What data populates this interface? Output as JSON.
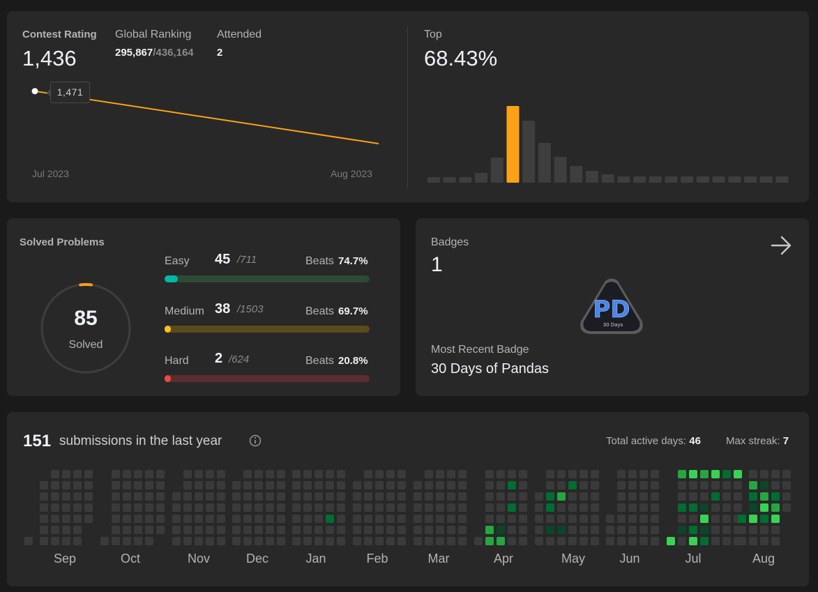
{
  "contest": {
    "rating_label": "Contest Rating",
    "rating": "1,436",
    "global_label": "Global Ranking",
    "global_rank": "295,867",
    "global_total": "/436,164",
    "attended_label": "Attended",
    "attended": "2",
    "tooltip_value": "1,471",
    "x_start": "Jul 2023",
    "x_end": "Aug 2023",
    "top_label": "Top",
    "top_value": "68.43%",
    "accent_color": "#ffa116"
  },
  "chart_data": {
    "type": "bar",
    "series": [
      {
        "values": [
          8,
          8,
          8,
          14,
          36,
          110,
          89,
          57,
          37,
          24,
          17,
          12,
          9,
          9,
          9,
          9,
          9,
          9,
          9,
          9,
          9,
          9,
          9
        ]
      }
    ],
    "highlight_index": 5,
    "colors": {
      "bar": "#3e3e3e",
      "highlight": "#ffa116"
    }
  },
  "rating_line": {
    "type": "line",
    "values": [
      1471,
      1436
    ]
  },
  "solved": {
    "title": "Solved Problems",
    "total": "85",
    "total_label": "Solved",
    "ring_progress": 0.04,
    "rows": [
      {
        "name": "Easy",
        "count": "45",
        "total": "/711",
        "beats_label": "Beats",
        "beats": "74.7%",
        "fraction": 0.063,
        "track": "#2c4a35",
        "fill": "#00b8a3"
      },
      {
        "name": "Medium",
        "count": "38",
        "total": "/1503",
        "beats_label": "Beats",
        "beats": "69.7%",
        "fraction": 0.025,
        "track": "#5a4a1e",
        "fill": "#ffc01e"
      },
      {
        "name": "Hard",
        "count": "2",
        "total": "/624",
        "beats_label": "Beats",
        "beats": "20.8%",
        "fraction": 0.003,
        "track": "#5a2e2e",
        "fill": "#ef4743"
      }
    ]
  },
  "badges": {
    "title": "Badges",
    "count": "1",
    "badge_letters": "PD",
    "badge_sub": "30 Days",
    "recent_label": "Most Recent Badge",
    "recent_name": "30 Days of Pandas",
    "arrow_icon": "arrow-right-icon"
  },
  "submissions": {
    "count": "151",
    "label": "submissions in the last year",
    "info_icon": "info-icon",
    "active_label": "Total active days:",
    "active_days": "46",
    "streak_label": "Max streak:",
    "max_streak": "7",
    "months": [
      "Sep",
      "Oct",
      "Nov",
      "Dec",
      "Jan",
      "Feb",
      "Mar",
      "Apr",
      "May",
      "Jun",
      "Jul",
      "Aug"
    ],
    "colors": {
      "empty": "#3a3a3a",
      "level1": "#0e4429",
      "level2": "#006d32",
      "level3": "#26a641",
      "level4": "#39d353"
    }
  }
}
